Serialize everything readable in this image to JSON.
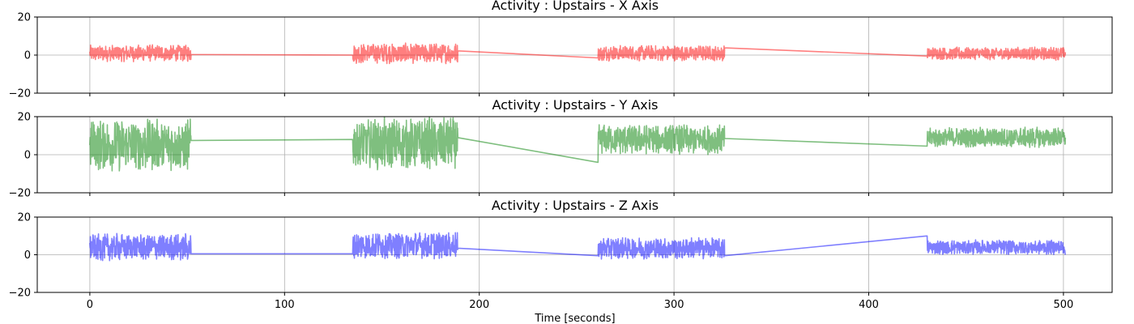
{
  "chart_data": [
    {
      "type": "line",
      "title": "Activity : Upstairs - X Axis",
      "color": "#ff0000",
      "alpha": 0.5,
      "ylim": [
        -20,
        20
      ],
      "yticks": [
        -20,
        0,
        20
      ],
      "xlim": [
        -27,
        525
      ],
      "xticks": [
        0,
        100,
        200,
        300,
        400,
        500
      ],
      "show_xtick_labels": false,
      "grid": true,
      "segments": [
        {
          "x_start": 0,
          "x_end": 52,
          "center": 1,
          "amplitude": 4.5,
          "end_value": 0.3
        },
        {
          "x_start": 135,
          "x_end": 189,
          "center": 1,
          "amplitude": 5.5,
          "start_value": 0,
          "end_value": 2.2
        },
        {
          "x_start": 261,
          "x_end": 326,
          "center": 1,
          "amplitude": 4.2,
          "start_value": -1.5,
          "end_value": 3.8
        },
        {
          "x_start": 430,
          "x_end": 501,
          "center": 0.8,
          "amplitude": 3.5,
          "start_value": -0.5,
          "end_value": 1.5
        }
      ],
      "connectors": [
        {
          "x": [
            52,
            135
          ],
          "y": [
            0.3,
            0
          ]
        },
        {
          "x": [
            189,
            261
          ],
          "y": [
            2.2,
            -1.5
          ]
        },
        {
          "x": [
            326,
            430
          ],
          "y": [
            3.8,
            -0.5
          ]
        }
      ]
    },
    {
      "type": "line",
      "title": "Activity : Upstairs - Y Axis",
      "color": "#008000",
      "alpha": 0.5,
      "ylim": [
        -20,
        20
      ],
      "yticks": [
        -20,
        0,
        20
      ],
      "xlim": [
        -27,
        525
      ],
      "xticks": [
        0,
        100,
        200,
        300,
        400,
        500
      ],
      "show_xtick_labels": false,
      "grid": true,
      "segments": [
        {
          "x_start": 0,
          "x_end": 52,
          "center": 5,
          "amplitude": 14,
          "end_value": 7.5
        },
        {
          "x_start": 135,
          "x_end": 189,
          "center": 6,
          "amplitude": 14,
          "start_value": 8,
          "end_value": 9
        },
        {
          "x_start": 261,
          "x_end": 326,
          "center": 8,
          "amplitude": 8,
          "start_value": -4,
          "end_value": 8.5
        },
        {
          "x_start": 430,
          "x_end": 501,
          "center": 9,
          "amplitude": 5.5,
          "start_value": 4.5,
          "end_value": 9
        }
      ],
      "connectors": [
        {
          "x": [
            52,
            135
          ],
          "y": [
            7.5,
            8
          ]
        },
        {
          "x": [
            189,
            261
          ],
          "y": [
            9,
            -4
          ]
        },
        {
          "x": [
            326,
            430
          ],
          "y": [
            8.5,
            4.5
          ]
        }
      ]
    },
    {
      "type": "line",
      "title": "Activity : Upstairs - Z Axis",
      "color": "#0000ff",
      "alpha": 0.5,
      "ylim": [
        -20,
        20
      ],
      "yticks": [
        -20,
        0,
        20
      ],
      "xlim": [
        -27,
        525
      ],
      "xticks": [
        0,
        100,
        200,
        300,
        400,
        500
      ],
      "show_xtick_labels": true,
      "xlabel": "Time [seconds]",
      "grid": true,
      "segments": [
        {
          "x_start": 0,
          "x_end": 52,
          "center": 4,
          "amplitude": 7.5,
          "end_value": 0.5
        },
        {
          "x_start": 135,
          "x_end": 189,
          "center": 5,
          "amplitude": 7.5,
          "start_value": 0.5,
          "end_value": 3.5
        },
        {
          "x_start": 261,
          "x_end": 326,
          "center": 3.5,
          "amplitude": 6,
          "start_value": -0.5,
          "end_value": -0.5
        },
        {
          "x_start": 430,
          "x_end": 501,
          "center": 4,
          "amplitude": 4,
          "start_value": 10,
          "end_value": 0
        }
      ],
      "connectors": [
        {
          "x": [
            52,
            135
          ],
          "y": [
            0.5,
            0.5
          ]
        },
        {
          "x": [
            189,
            261
          ],
          "y": [
            3.5,
            -0.5
          ]
        },
        {
          "x": [
            326,
            430
          ],
          "y": [
            -0.5,
            10
          ]
        }
      ]
    }
  ]
}
